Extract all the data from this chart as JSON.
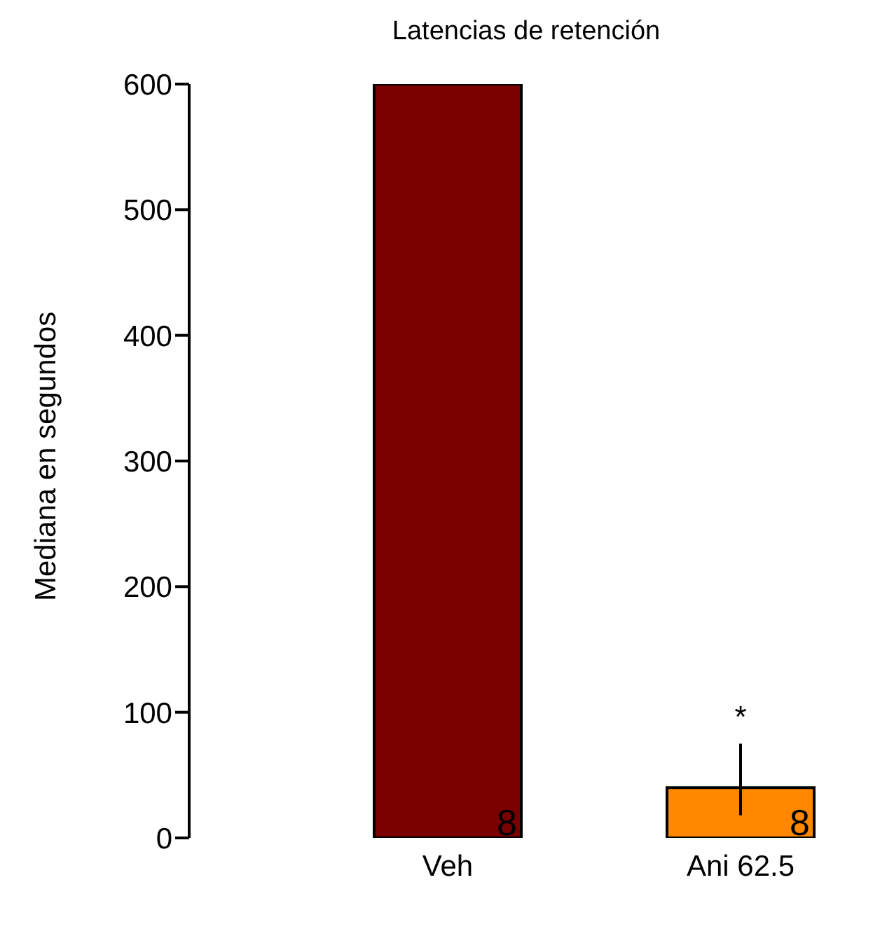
{
  "chart_data": {
    "type": "bar",
    "title": "Latencias de retención",
    "ylabel": "Mediana en segundos",
    "categories": [
      "Veh",
      "Ani 62.5"
    ],
    "values": [
      600,
      40
    ],
    "colors": [
      "#7a0000",
      "#ff8800"
    ],
    "errors": [
      null,
      [
        18,
        75
      ]
    ],
    "ylim": [
      0,
      600
    ],
    "yticks": [
      0,
      100,
      200,
      300,
      400,
      500,
      600
    ],
    "grid": false,
    "legend": false,
    "annotations": [
      {
        "text": "8",
        "x": "Veh",
        "y": 0
      },
      {
        "text": "8",
        "x": "Ani 62.5",
        "y": 0
      },
      {
        "text": "*",
        "x": "Ani 62.5",
        "y": 75
      }
    ]
  }
}
